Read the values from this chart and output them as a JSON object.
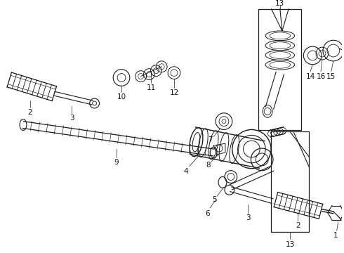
{
  "bg_color": "#ffffff",
  "line_color": "#1a1a1a",
  "label_color": "#111111",
  "fig_width": 4.9,
  "fig_height": 3.6,
  "dpi": 100,
  "fontsize": 7.5
}
